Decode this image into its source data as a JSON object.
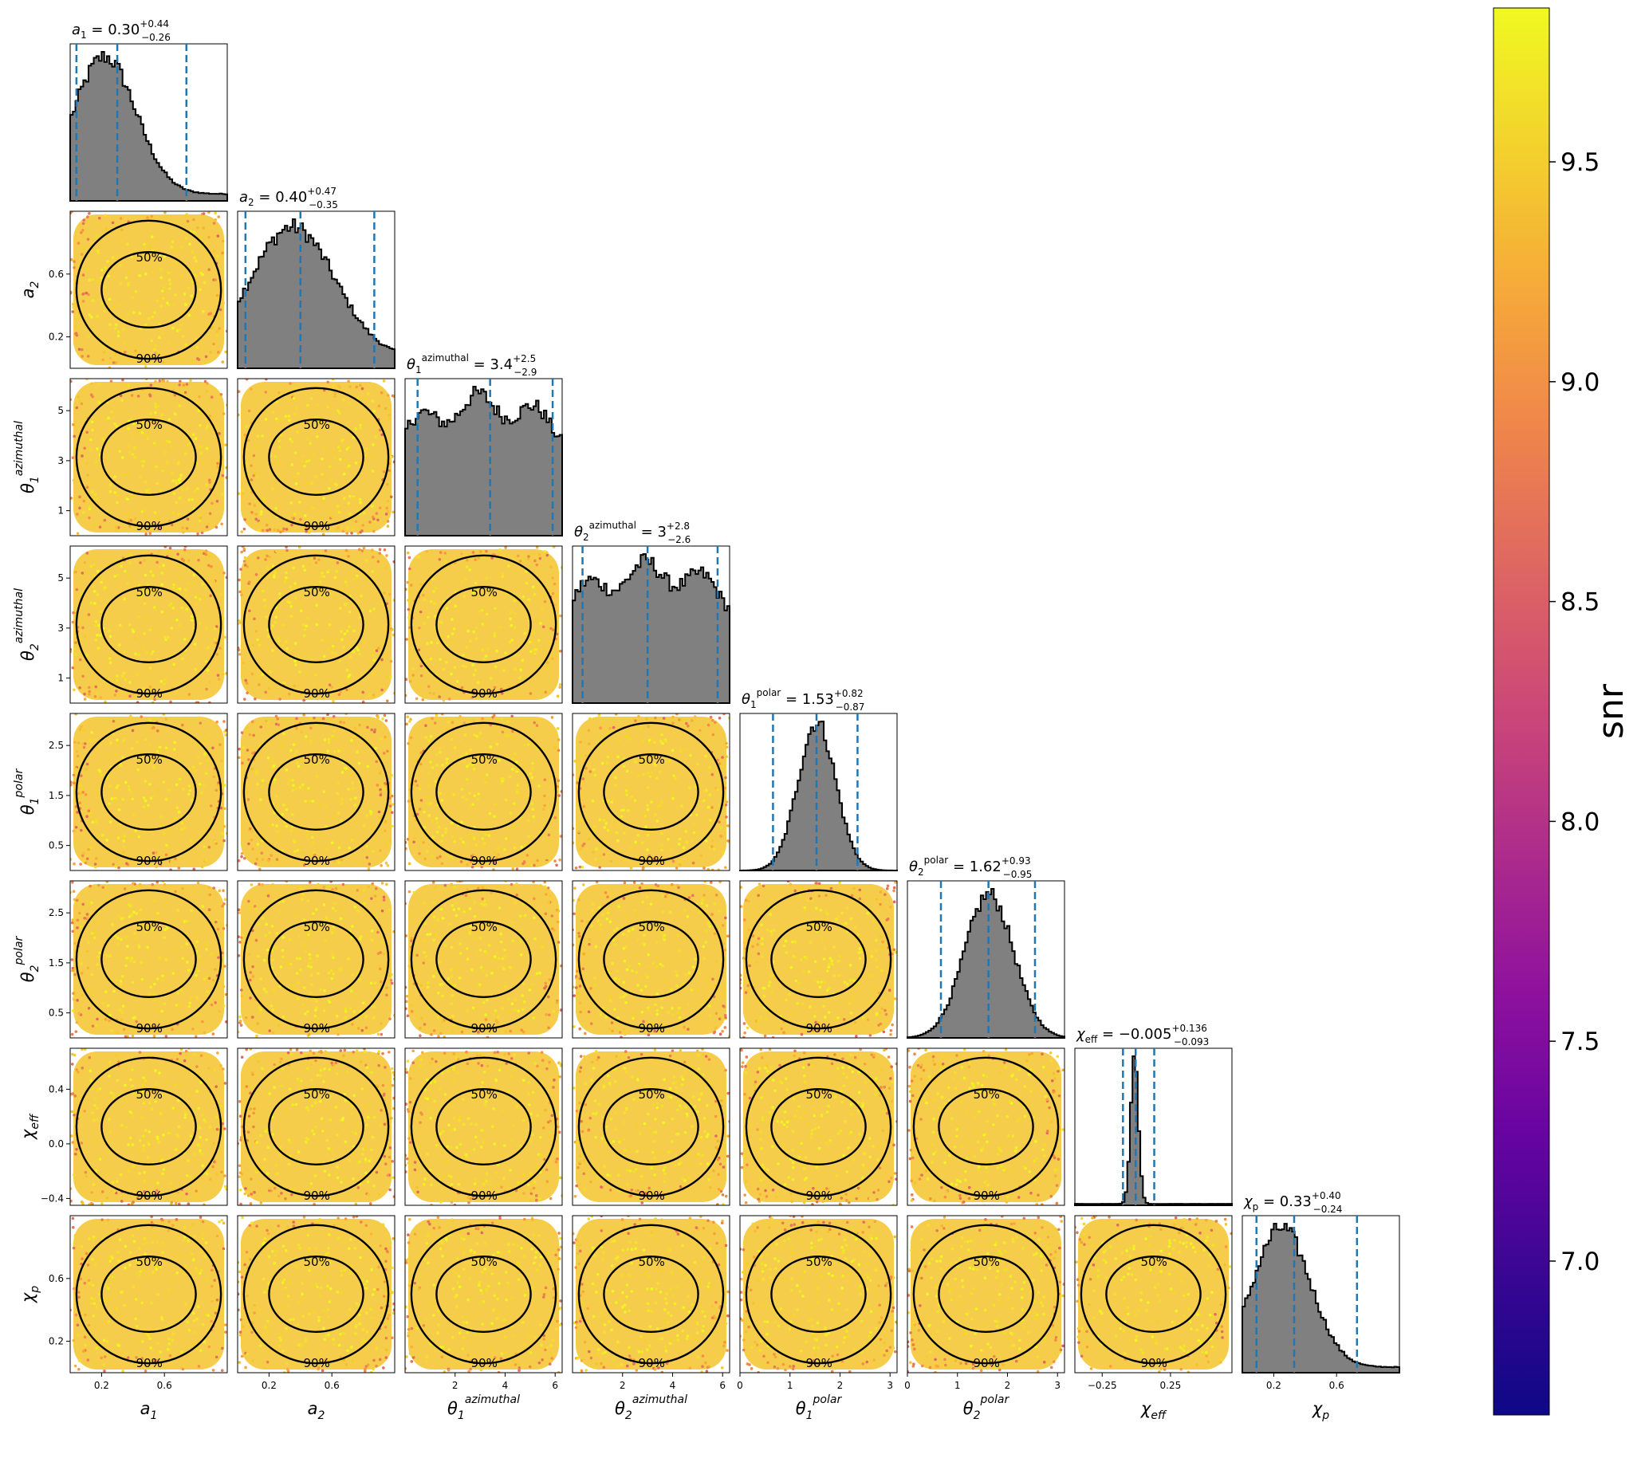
{
  "chart_data": {
    "type": "corner",
    "colorbar": {
      "label": "snr",
      "range": [
        6.65,
        9.85
      ],
      "ticks": [
        "7.0",
        "7.5",
        "8.0",
        "8.5",
        "9.0",
        "9.5"
      ],
      "tick_values": [
        7.0,
        7.5,
        8.0,
        8.5,
        9.0,
        9.5
      ],
      "colormap": "plasma"
    },
    "colors": {
      "histogram_fill": "#808080",
      "quantile_line": "#1f77b4",
      "contour": "#000000",
      "scatter_main": "#f5c42a"
    },
    "contour_levels": [
      "50%",
      "90%"
    ],
    "parameters": [
      {
        "id": "a1",
        "label": "a1",
        "title_name": "a1",
        "median": "0.30",
        "plus": "+0.44",
        "minus": "−0.26",
        "range": [
          0,
          1
        ],
        "ticks": [
          0.2,
          0.6
        ],
        "tick_labels": [
          "0.2",
          "0.6"
        ],
        "median_value": 0.3,
        "lo_value": 0.04,
        "hi_value": 0.74,
        "shape": "skew"
      },
      {
        "id": "a2",
        "label": "a2",
        "title_name": "a2",
        "median": "0.40",
        "plus": "+0.47",
        "minus": "−0.35",
        "range": [
          0,
          1
        ],
        "ticks": [
          0.2,
          0.6
        ],
        "tick_labels": [
          "0.2",
          "0.6"
        ],
        "median_value": 0.4,
        "lo_value": 0.05,
        "hi_value": 0.87,
        "shape": "skew2"
      },
      {
        "id": "theta1_az",
        "label": "θ1 azimuthal",
        "title_name": "θ1 azimuthal",
        "median": "3.4",
        "plus": "+2.5",
        "minus": "−2.9",
        "range": [
          0,
          6.28
        ],
        "ticks": [
          2,
          4,
          6
        ],
        "tick_labels": [
          "2",
          "4",
          "6"
        ],
        "tick_labels_y": [
          "1",
          "3",
          "5"
        ],
        "ticks_y": [
          1,
          3,
          5
        ],
        "median_value": 3.4,
        "lo_value": 0.5,
        "hi_value": 5.9,
        "shape": "flat"
      },
      {
        "id": "theta2_az",
        "label": "θ2 azimuthal",
        "title_name": "θ2 azimuthal",
        "median": "3",
        "plus": "+2.8",
        "minus": "−2.6",
        "range": [
          0,
          6.28
        ],
        "ticks": [
          2,
          4,
          6
        ],
        "tick_labels": [
          "2",
          "4",
          "6"
        ],
        "tick_labels_y": [
          "1",
          "3",
          "5"
        ],
        "ticks_y": [
          1,
          3,
          5
        ],
        "median_value": 3.0,
        "lo_value": 0.4,
        "hi_value": 5.8,
        "shape": "flat"
      },
      {
        "id": "theta1_polar",
        "label": "θ1 polar",
        "title_name": "θ1 polar",
        "median": "1.53",
        "plus": "+0.82",
        "minus": "−0.87",
        "range": [
          0,
          3.14
        ],
        "ticks": [
          0,
          1,
          2,
          3
        ],
        "tick_labels": [
          "0",
          "1",
          "2",
          "3"
        ],
        "tick_labels_y": [
          "0.5",
          "1.5",
          "2.5"
        ],
        "ticks_y": [
          0.5,
          1.5,
          2.5
        ],
        "median_value": 1.53,
        "lo_value": 0.66,
        "hi_value": 2.35,
        "shape": "gauss"
      },
      {
        "id": "theta2_polar",
        "label": "θ2 polar",
        "title_name": "θ2 polar",
        "median": "1.62",
        "plus": "+0.93",
        "minus": "−0.95",
        "range": [
          0,
          3.14
        ],
        "ticks": [
          0,
          1,
          2,
          3
        ],
        "tick_labels": [
          "0",
          "1",
          "2",
          "3"
        ],
        "tick_labels_y": [
          "0.5",
          "1.5",
          "2.5"
        ],
        "ticks_y": [
          0.5,
          1.5,
          2.5
        ],
        "median_value": 1.62,
        "lo_value": 0.67,
        "hi_value": 2.55,
        "shape": "gauss2"
      },
      {
        "id": "chi_eff",
        "label": "χeff",
        "title_name": "χeff",
        "median": "−0.005",
        "plus": "+0.136",
        "minus": "−0.093",
        "range": [
          -0.45,
          0.7
        ],
        "ticks": [
          -0.25,
          0.25
        ],
        "tick_labels": [
          "−0.25",
          "0.25"
        ],
        "tick_labels_y": [
          "−0.4",
          "0.0",
          "0.4"
        ],
        "ticks_y": [
          -0.4,
          0.0,
          0.4
        ],
        "median_value": -0.005,
        "lo_value": -0.098,
        "hi_value": 0.131,
        "shape": "peak"
      },
      {
        "id": "chi_p",
        "label": "χp",
        "title_name": "χp",
        "median": "0.33",
        "plus": "+0.40",
        "minus": "−0.24",
        "range": [
          0,
          1
        ],
        "ticks": [
          0.2,
          0.6
        ],
        "tick_labels": [
          "0.2",
          "0.6"
        ],
        "median_value": 0.33,
        "lo_value": 0.09,
        "hi_value": 0.73,
        "shape": "skew3"
      }
    ],
    "y_axis_labels": [
      "a2",
      "θ2 polar?",
      "",
      "",
      "",
      "",
      "",
      ""
    ],
    "grid": false,
    "legend": "none"
  }
}
